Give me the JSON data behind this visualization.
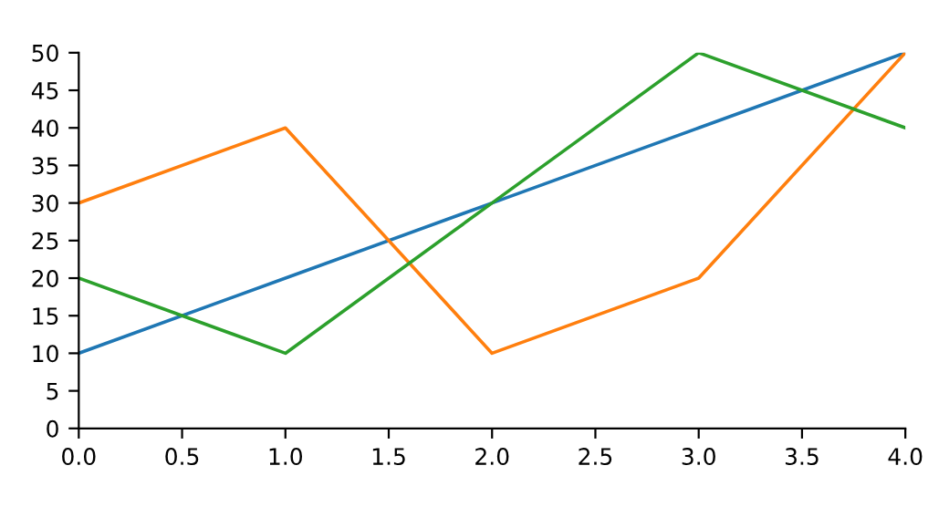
{
  "chart_data": {
    "type": "line",
    "x": [
      0,
      1,
      2,
      3,
      4
    ],
    "series": [
      {
        "color": "#1f77b4",
        "values": [
          10,
          20,
          30,
          40,
          50
        ]
      },
      {
        "color": "#ff7f0e",
        "values": [
          30,
          40,
          10,
          20,
          50
        ]
      },
      {
        "color": "#2ca02c",
        "values": [
          20,
          10,
          30,
          50,
          40
        ]
      }
    ],
    "xlim": [
      0,
      4
    ],
    "xticks": [
      {
        "value": 0,
        "label": "0.0"
      },
      0.5,
      {
        "value": 1,
        "label": "1.0"
      },
      1.5,
      {
        "value": 2,
        "label": "2.0"
      },
      2.5,
      {
        "value": 3,
        "label": "3.0"
      },
      3.5,
      {
        "value": 4,
        "label": "4.0"
      }
    ],
    "ylim": [
      0,
      50
    ],
    "yticks": [
      0,
      5,
      10,
      15,
      20,
      25,
      30,
      35,
      40,
      45,
      50
    ],
    "grid": false,
    "marker": "none",
    "line_style": "solid"
  }
}
